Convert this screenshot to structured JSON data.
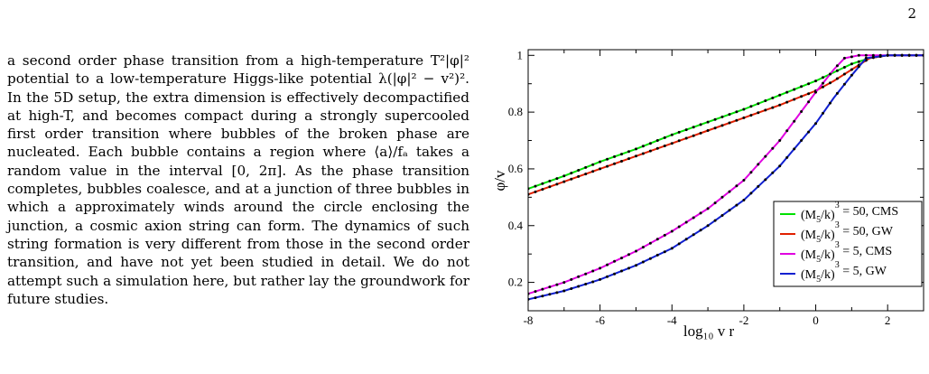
{
  "page_number": "2",
  "body_text": "a second order phase transition from a high-temperature T²|φ|² potential to a low-temperature Higgs-like potential λ(|φ|² − v²)². In the 5D setup, the extra dimension is effectively decompactified at high-T, and becomes compact during a strongly supercooled first order transition where bubbles of the broken phase are nucleated. Each bubble contains a region where ⟨a⟩/fₐ takes a random value in the interval [0, 2π]. As the phase transition completes, bubbles coalesce, and at a junction of three bubbles in which a approximately winds around the circle enclosing the junction, a cosmic axion string can form. The dynamics of such string formation is very different from those in the second order transition, and have not yet been studied in detail. We do not attempt such a simulation here, but rather lay the groundwork for future studies.",
  "chart_data": {
    "type": "line",
    "xlabel": "log₁₀ v r",
    "ylabel": "φ/v",
    "xlim": [
      -8,
      3
    ],
    "ylim": [
      0.1,
      1.02
    ],
    "x_ticks": [
      "-8",
      "-6",
      "-4",
      "-2",
      "0",
      "2"
    ],
    "y_ticks": [
      "0.2",
      "0.4",
      "0.6",
      "0.8",
      "1"
    ],
    "legend_position": "bottom-right",
    "markers": "black dots along each curve",
    "series": [
      {
        "name": "(M5/k)³ = 50, CMS",
        "label_main": "(M",
        "label_sub": "5",
        "label_rest": "/k)",
        "label_sup": "3",
        "label_tail": " = 50, CMS",
        "color": "#00e000",
        "x": [
          -8,
          -7,
          -6,
          -5,
          -4,
          -3,
          -2,
          -1,
          0,
          0.5,
          1,
          1.5,
          2,
          3
        ],
        "y": [
          0.53,
          0.575,
          0.625,
          0.67,
          0.72,
          0.765,
          0.81,
          0.86,
          0.91,
          0.94,
          0.97,
          0.99,
          1.0,
          1.0
        ]
      },
      {
        "name": "(M5/k)³ = 50, GW",
        "label_main": "(M",
        "label_sub": "5",
        "label_rest": "/k)",
        "label_sup": "3",
        "label_tail": " = 50, GW",
        "color": "#e02000",
        "x": [
          -8,
          -7,
          -6,
          -5,
          -4,
          -3,
          -2,
          -1,
          0,
          0.5,
          1,
          1.5,
          2,
          3
        ],
        "y": [
          0.51,
          0.555,
          0.6,
          0.645,
          0.69,
          0.735,
          0.78,
          0.825,
          0.875,
          0.91,
          0.95,
          0.99,
          1.0,
          1.0
        ]
      },
      {
        "name": "(M5/k)³ = 5, CMS",
        "label_main": "(M",
        "label_sub": "5",
        "label_rest": "/k)",
        "label_sup": "3",
        "label_tail": " = 5, CMS",
        "color": "#e000e0",
        "x": [
          -8,
          -7,
          -6,
          -5,
          -4,
          -3,
          -2,
          -1,
          0,
          0.5,
          0.8,
          1.2,
          2,
          3
        ],
        "y": [
          0.16,
          0.2,
          0.25,
          0.31,
          0.38,
          0.46,
          0.56,
          0.7,
          0.87,
          0.95,
          0.99,
          1.0,
          1.0,
          1.0
        ]
      },
      {
        "name": "(M5/k)³ = 5, GW",
        "label_main": "(M",
        "label_sub": "5",
        "label_rest": "/k)",
        "label_sup": "3",
        "label_tail": " = 5, GW",
        "color": "#1020d0",
        "x": [
          -8,
          -7,
          -6,
          -5,
          -4,
          -3,
          -2,
          -1,
          0,
          0.5,
          1,
          1.4,
          2,
          3
        ],
        "y": [
          0.14,
          0.17,
          0.21,
          0.26,
          0.32,
          0.4,
          0.49,
          0.61,
          0.76,
          0.85,
          0.93,
          0.99,
          1.0,
          1.0
        ]
      }
    ]
  }
}
